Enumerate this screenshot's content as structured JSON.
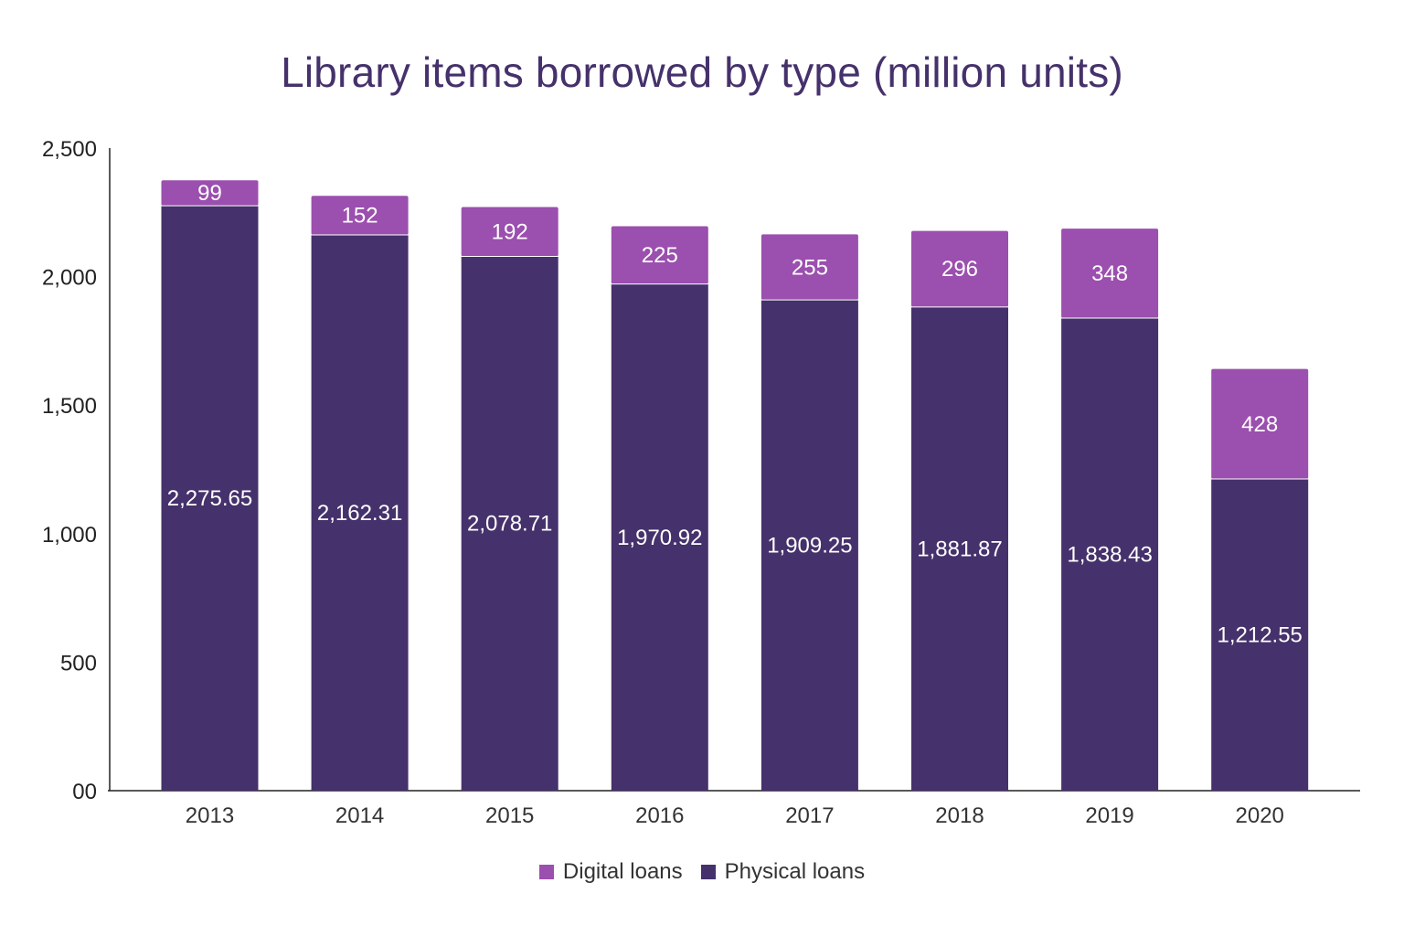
{
  "chart_data": {
    "type": "bar",
    "stacked": true,
    "title": "Library items borrowed by type (million units)",
    "xlabel": "",
    "ylabel": "",
    "categories": [
      "2013",
      "2014",
      "2015",
      "2016",
      "2017",
      "2018",
      "2019",
      "2020"
    ],
    "ylim": [
      0,
      2500
    ],
    "yticks": [
      0,
      500,
      1000,
      1500,
      2000,
      2500
    ],
    "ytick_labels": [
      "00",
      "500",
      "1,000",
      "1,500",
      "2,000",
      "2,500"
    ],
    "series": [
      {
        "name": "Physical loans",
        "color": "#45316b",
        "values": [
          2275.65,
          2162.31,
          2078.71,
          1970.92,
          1909.25,
          1881.87,
          1838.43,
          1212.55
        ],
        "labels": [
          "2,275.65",
          "2,162.31",
          "2,078.71",
          "1,970.92",
          "1,909.25",
          "1,881.87",
          "1,838.43",
          "1,212.55"
        ]
      },
      {
        "name": "Digital loans",
        "color": "#9b4fae",
        "values": [
          99,
          152,
          192,
          225,
          255,
          296,
          348,
          428
        ],
        "labels": [
          "99",
          "152",
          "192",
          "225",
          "255",
          "296",
          "348",
          "428"
        ]
      }
    ],
    "legend_order": [
      "Digital loans",
      "Physical loans"
    ],
    "legend_position": "bottom",
    "grid": false
  },
  "legend": {
    "digital_label": "Digital loans",
    "physical_label": "Physical loans",
    "digital_color": "#9b4fae",
    "physical_color": "#45316b"
  }
}
